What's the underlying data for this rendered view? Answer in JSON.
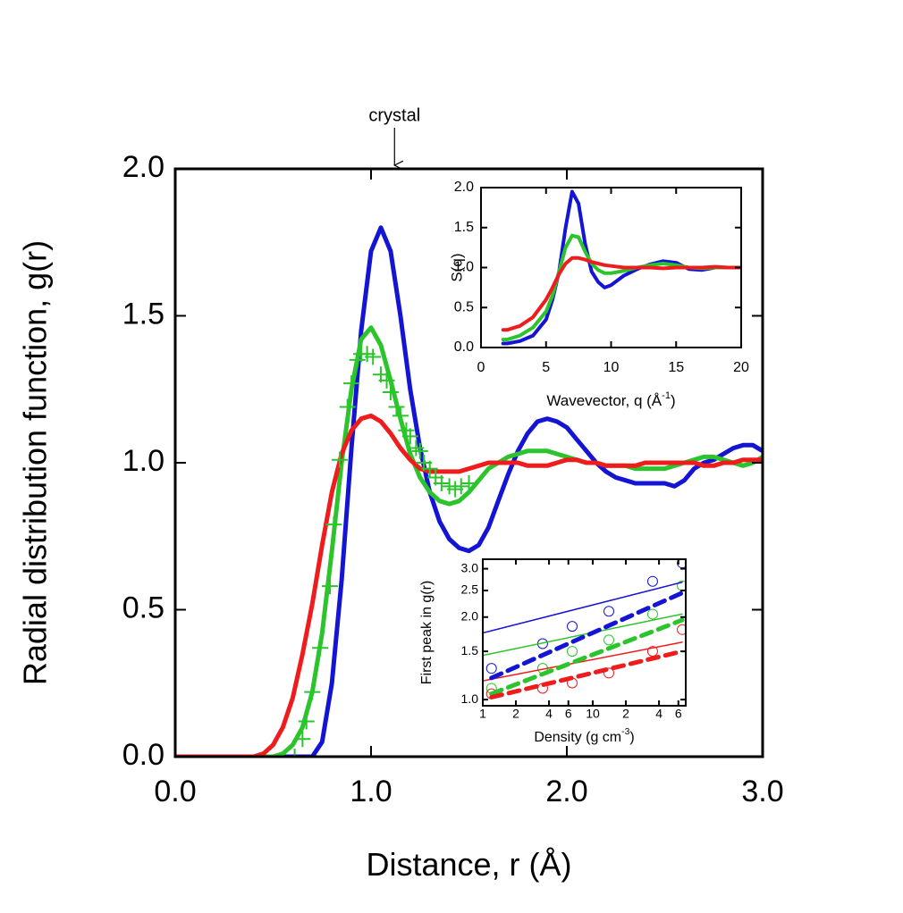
{
  "chart_data": [
    {
      "type": "line",
      "xlabel": "Distance, r (Å)",
      "ylabel": "Radial distribution function, g(r)",
      "annotation": {
        "text": "crystal",
        "x": 1.12
      },
      "xlim": [
        0,
        3
      ],
      "xticks": [
        {
          "value": 0,
          "label": "0.0"
        },
        {
          "value": 1,
          "label": "1.0"
        },
        {
          "value": 2,
          "label": "2.0"
        },
        {
          "value": 3,
          "label": "3.0"
        }
      ],
      "ylim": [
        0,
        2
      ],
      "yticks": [
        {
          "value": 0,
          "label": "0.0"
        },
        0.5,
        {
          "value": 1,
          "label": "1.0"
        },
        1.5,
        {
          "value": 2,
          "label": "2.0"
        }
      ],
      "x": [
        0,
        0.05,
        0.1,
        0.15,
        0.2,
        0.25,
        0.3,
        0.35,
        0.4,
        0.45,
        0.5,
        0.55,
        0.6,
        0.65,
        0.7,
        0.75,
        0.8,
        0.85,
        0.9,
        0.95,
        1.0,
        1.05,
        1.1,
        1.15,
        1.2,
        1.25,
        1.3,
        1.35,
        1.4,
        1.45,
        1.5,
        1.55,
        1.6,
        1.65,
        1.7,
        1.75,
        1.8,
        1.85,
        1.9,
        1.95,
        2.0,
        2.05,
        2.1,
        2.15,
        2.2,
        2.25,
        2.3,
        2.35,
        2.4,
        2.45,
        2.5,
        2.55,
        2.6,
        2.65,
        2.7,
        2.75,
        2.8,
        2.85,
        2.9,
        2.95,
        3.0
      ],
      "series": [
        {
          "color": "#1414d4",
          "width": 5,
          "values": [
            0,
            0,
            0,
            0,
            0,
            0,
            0,
            0,
            0,
            0,
            0,
            0,
            0,
            0,
            0,
            0.05,
            0.25,
            0.6,
            1.05,
            1.45,
            1.72,
            1.8,
            1.72,
            1.5,
            1.25,
            1.05,
            0.9,
            0.8,
            0.74,
            0.71,
            0.7,
            0.72,
            0.78,
            0.87,
            0.96,
            1.04,
            1.1,
            1.14,
            1.15,
            1.14,
            1.12,
            1.08,
            1.04,
            1.0,
            0.97,
            0.95,
            0.94,
            0.93,
            0.93,
            0.93,
            0.93,
            0.92,
            0.94,
            0.98,
            1.0,
            1.01,
            1.03,
            1.05,
            1.06,
            1.06,
            1.04
          ]
        },
        {
          "color": "#2cc42c",
          "width": 5,
          "values": [
            0,
            0,
            0,
            0,
            0,
            0,
            0,
            0,
            0,
            0,
            0,
            0.01,
            0.04,
            0.1,
            0.22,
            0.42,
            0.7,
            1.0,
            1.25,
            1.42,
            1.46,
            1.4,
            1.28,
            1.15,
            1.03,
            0.95,
            0.9,
            0.87,
            0.86,
            0.87,
            0.9,
            0.94,
            0.98,
            1.0,
            1.02,
            1.03,
            1.04,
            1.04,
            1.04,
            1.03,
            1.02,
            1.01,
            1.0,
            1.0,
            0.99,
            0.99,
            0.99,
            0.98,
            0.98,
            0.98,
            0.98,
            0.99,
            1.0,
            1.01,
            1.02,
            1.02,
            1.01,
            1.0,
            0.99,
            1.0,
            1.02
          ]
        },
        {
          "color": "#ee1c1c",
          "width": 5,
          "values": [
            0,
            0,
            0,
            0,
            0,
            0,
            0,
            0,
            0,
            0.01,
            0.04,
            0.1,
            0.2,
            0.35,
            0.52,
            0.72,
            0.9,
            1.03,
            1.11,
            1.15,
            1.16,
            1.14,
            1.1,
            1.05,
            1.01,
            0.98,
            0.97,
            0.97,
            0.97,
            0.97,
            0.98,
            0.99,
            1.0,
            1.0,
            1.0,
            1.0,
            0.99,
            0.99,
            0.99,
            1.0,
            1.01,
            1.01,
            1.0,
            1.0,
            0.99,
            0.99,
            0.99,
            0.99,
            1.0,
            1.0,
            1.0,
            1.0,
            1.0,
            1.0,
            0.99,
            0.99,
            1.0,
            1.0,
            1.01,
            1.01,
            1.01
          ]
        },
        {
          "color": "#2cc42c",
          "marker": "cross",
          "x": [
            0.61,
            0.65,
            0.67,
            0.7,
            0.74,
            0.79,
            0.81,
            0.84,
            0.88,
            0.9,
            0.93,
            0.95,
            0.98,
            1.01,
            1.05,
            1.08,
            1.1,
            1.13,
            1.15,
            1.18,
            1.2,
            1.23,
            1.25,
            1.27,
            1.3,
            1.33,
            1.36,
            1.4,
            1.43,
            1.46,
            1.5
          ],
          "values": [
            0,
            0.06,
            0.12,
            0.22,
            0.37,
            0.58,
            0.79,
            1.01,
            1.19,
            1.27,
            1.35,
            1.37,
            1.37,
            1.36,
            1.3,
            1.28,
            1.24,
            1.19,
            1.16,
            1.11,
            1.09,
            1.05,
            1.04,
            1.0,
            0.98,
            0.95,
            0.93,
            0.92,
            0.91,
            0.92,
            0.93
          ]
        }
      ]
    },
    {
      "type": "line",
      "xlabel": "Wavevector, q (Å",
      "xlabel_sup": "-1",
      "xlabel_end": ")",
      "ylabel": "S(q)",
      "xlim": [
        0,
        20
      ],
      "xticks": [
        0,
        5,
        10,
        15,
        20
      ],
      "ylim": [
        0,
        2
      ],
      "yticks": [
        {
          "value": 0,
          "label": "0.0"
        },
        0.5,
        {
          "value": 1,
          "label": "1.0"
        },
        1.5,
        {
          "value": 2,
          "label": "2.0"
        }
      ],
      "x": [
        1.7,
        2,
        3,
        4,
        5,
        5.5,
        6,
        6.5,
        7,
        7.5,
        8,
        8.5,
        9,
        9.5,
        10,
        11,
        12,
        13,
        14,
        15,
        16,
        17,
        18,
        19,
        20
      ],
      "series": [
        {
          "color": "#1414d4",
          "width": 4,
          "values": [
            0.05,
            0.05,
            0.08,
            0.15,
            0.35,
            0.6,
            0.95,
            1.5,
            1.95,
            1.8,
            1.3,
            0.95,
            0.82,
            0.75,
            0.78,
            0.9,
            0.98,
            1.04,
            1.08,
            1.06,
            0.98,
            0.97,
            1.0,
            1.0,
            1.0
          ]
        },
        {
          "color": "#2cc42c",
          "width": 4,
          "values": [
            0.1,
            0.1,
            0.15,
            0.25,
            0.45,
            0.65,
            0.95,
            1.25,
            1.4,
            1.38,
            1.2,
            1.05,
            0.97,
            0.93,
            0.93,
            0.96,
            1.0,
            1.03,
            1.05,
            1.03,
            1.0,
            0.99,
            1.0,
            1.0,
            1.0
          ]
        },
        {
          "color": "#ee1c1c",
          "width": 4,
          "values": [
            0.22,
            0.22,
            0.27,
            0.38,
            0.6,
            0.75,
            0.92,
            1.05,
            1.12,
            1.12,
            1.1,
            1.07,
            1.05,
            1.03,
            1.02,
            1.0,
            1.0,
            1.0,
            0.99,
            1.0,
            1.0,
            1.0,
            1.01,
            1.0,
            1.0
          ]
        }
      ]
    },
    {
      "type": "scatter",
      "xlabel": "Density (g cm",
      "xlabel_sup": "-3",
      "xlabel_end": ")",
      "ylabel": "First peak in g(r)",
      "log_x": true,
      "log_y": true,
      "xlim": [
        1,
        70
      ],
      "xticks": [
        1,
        2,
        4,
        6,
        10,
        {
          "value": 20,
          "label": "2"
        },
        {
          "value": 40,
          "label": "4"
        },
        {
          "value": 60,
          "label": "6"
        }
      ],
      "ylim": [
        0.95,
        3.25
      ],
      "yticks": [
        {
          "value": 1,
          "label": "1.0"
        },
        1.5,
        {
          "value": 2,
          "label": "2.0"
        },
        2.5,
        {
          "value": 3,
          "label": "3.0"
        }
      ],
      "series": [
        {
          "color": "#1414d4",
          "marker": "circle",
          "x": [
            1.2,
            3.5,
            6.5,
            14,
            35,
            65
          ],
          "values": [
            1.3,
            1.6,
            1.85,
            2.1,
            2.7,
            3.15
          ]
        },
        {
          "color": "#2cc42c",
          "marker": "circle",
          "x": [
            1.2,
            3.5,
            6.5,
            14,
            35,
            65
          ],
          "values": [
            1.1,
            1.3,
            1.5,
            1.65,
            2.05,
            2.6
          ]
        },
        {
          "color": "#ee1c1c",
          "marker": "circle",
          "x": [
            1.2,
            3.5,
            6.5,
            14,
            35,
            65
          ],
          "values": [
            1.05,
            1.1,
            1.15,
            1.25,
            1.5,
            1.8
          ]
        },
        {
          "color": "#1414d4",
          "width": 1.5,
          "x": [
            1,
            65
          ],
          "values": [
            1.75,
            2.68
          ]
        },
        {
          "color": "#2cc42c",
          "width": 1.5,
          "x": [
            1,
            65
          ],
          "values": [
            1.45,
            2.05
          ]
        },
        {
          "color": "#ee1c1c",
          "width": 1.5,
          "x": [
            1,
            65
          ],
          "values": [
            1.17,
            1.62
          ]
        },
        {
          "color": "#1414d4",
          "width": 5,
          "dash": true,
          "x": [
            1.2,
            65
          ],
          "values": [
            1.2,
            2.45
          ]
        },
        {
          "color": "#2cc42c",
          "width": 5,
          "dash": true,
          "x": [
            1.2,
            65
          ],
          "values": [
            1.05,
            1.95
          ]
        },
        {
          "color": "#ee1c1c",
          "width": 5,
          "dash": true,
          "x": [
            1.2,
            65
          ],
          "values": [
            1.02,
            1.5
          ]
        }
      ]
    }
  ]
}
